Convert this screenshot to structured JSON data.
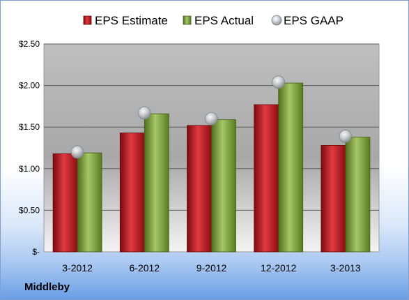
{
  "company_label": "Middleby",
  "colors": {
    "estimate": "#c0141b",
    "actual": "#7fa23b",
    "gaap": "#b8bcc4"
  },
  "chart_data": {
    "type": "bar",
    "title": "",
    "xlabel": "",
    "ylabel": "",
    "categories": [
      "3-2012",
      "6-2012",
      "9-2012",
      "12-2012",
      "3-2013"
    ],
    "series": [
      {
        "name": "EPS Estimate",
        "type": "bar",
        "values": [
          1.18,
          1.43,
          1.52,
          1.77,
          1.28
        ]
      },
      {
        "name": "EPS Actual",
        "type": "bar",
        "values": [
          1.19,
          1.66,
          1.59,
          2.03,
          1.38
        ]
      },
      {
        "name": "EPS GAAP",
        "type": "scatter",
        "values": [
          1.2,
          1.67,
          1.6,
          2.04,
          1.39
        ]
      }
    ],
    "y_ticks": [
      {
        "value": 0,
        "label": "$-"
      },
      {
        "value": 0.5,
        "label": "$0.50"
      },
      {
        "value": 1.0,
        "label": "$1.00"
      },
      {
        "value": 1.5,
        "label": "$1.50"
      },
      {
        "value": 2.0,
        "label": "$2.00"
      },
      {
        "value": 2.5,
        "label": "$2.50"
      }
    ],
    "ylim": [
      0,
      2.5
    ],
    "grid": true,
    "legend_position": "top"
  }
}
